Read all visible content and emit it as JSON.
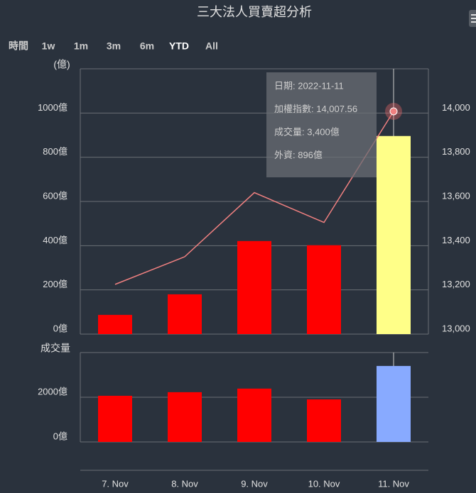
{
  "title": "三大法人買賣超分析",
  "range_selector": {
    "label": "時間",
    "buttons": [
      "1w",
      "1m",
      "3m",
      "6m",
      "YTD",
      "All"
    ],
    "selected": 4
  },
  "tooltip": [
    "日期: 2022-11-11",
    "加權指數: 14,007.56",
    "成交量: 3,400億",
    "外資: 896億"
  ],
  "hover": 4,
  "chart_data": [
    {
      "type": "bar",
      "y_label": "(億)",
      "grid": true,
      "ylim": [
        0,
        1200
      ],
      "yticks": [
        {
          "value": 0,
          "label": "0億"
        },
        {
          "value": 200,
          "label": "200億"
        },
        {
          "value": 400,
          "label": "400億"
        },
        {
          "value": 600,
          "label": "600億"
        },
        {
          "value": 800,
          "label": "800億"
        },
        {
          "value": 1000,
          "label": "1000億"
        }
      ],
      "y2lim": [
        13000,
        14200
      ],
      "y2ticks": [
        {
          "value": 13000,
          "label": "13,000"
        },
        {
          "value": 13200,
          "label": "13,200"
        },
        {
          "value": 13400,
          "label": "13,400"
        },
        {
          "value": 13600,
          "label": "13,600"
        },
        {
          "value": 13800,
          "label": "13,800"
        },
        {
          "value": 14000,
          "label": "14,000"
        }
      ],
      "series": [
        {
          "type": "bar",
          "colors": [
            "#ff0000",
            "#ff0000",
            "#ff0000",
            "#ff0000",
            "#ffff88"
          ],
          "values": [
            87,
            180,
            421,
            402,
            896
          ]
        },
        {
          "type": "line",
          "axis": "y2",
          "color": "#f08080",
          "values": [
            13225,
            13350,
            13640,
            13505,
            14007.56
          ]
        }
      ]
    },
    {
      "type": "bar",
      "y_label": "成交量",
      "grid": true,
      "categories": [
        "7. Nov",
        "8. Nov",
        "9. Nov",
        "10. Nov",
        "11. Nov"
      ],
      "ylim": [
        0,
        4000
      ],
      "yticks": [
        {
          "value": 0,
          "label": "0億"
        },
        {
          "value": 2000,
          "label": "2000億"
        }
      ],
      "series": [
        {
          "type": "bar",
          "colors": [
            "#ff0000",
            "#ff0000",
            "#ff0000",
            "#ff0000",
            "#88aaff"
          ],
          "values": [
            2065,
            2226,
            2387,
            1903,
            3400
          ]
        }
      ]
    }
  ]
}
